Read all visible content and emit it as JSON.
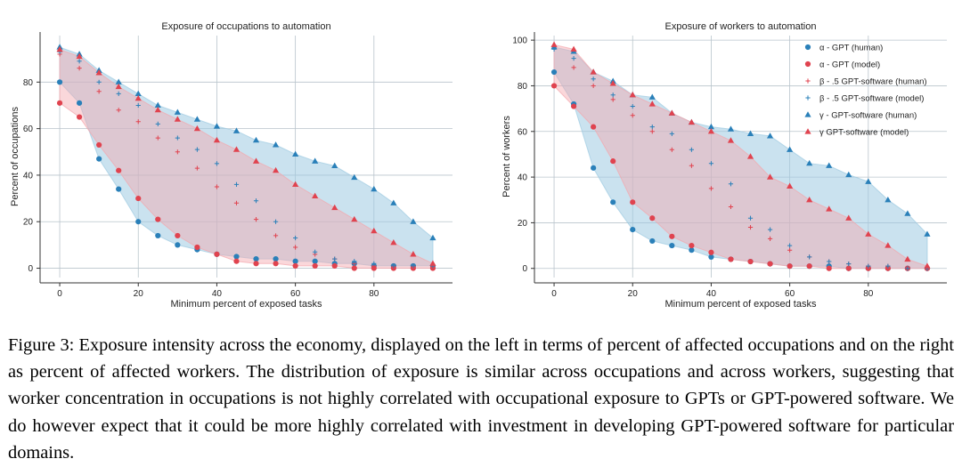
{
  "caption": "Figure 3: Exposure intensity across the economy, displayed on the left in terms of percent of affected occupations and on the right as percent of affected workers. The distribution of exposure is similar across occupations and across workers, suggesting that worker concentration in occupations is not highly correlated with occupational exposure to GPTs or GPT-powered software. We do however expect that it could be more highly correlated with investment in developing GPT-powered software for particular domains.",
  "colors": {
    "human": "#2a80b9",
    "model": "#e0434f",
    "human_fill": "#9ecae1",
    "model_fill": "#f4a6ad",
    "overlap_fill": "#9c84b0",
    "grid": "#b9c4cc"
  },
  "legend": [
    {
      "label": "α - GPT (human)",
      "series": "alpha_human",
      "marker": "dot",
      "color": "#2a80b9"
    },
    {
      "label": "α - GPT (model)",
      "series": "alpha_model",
      "marker": "dot",
      "color": "#e0434f"
    },
    {
      "label": "β - .5 GPT-software (human)",
      "series": "beta_human",
      "marker": "plus",
      "color": "#e0434f"
    },
    {
      "label": "β - .5 GPT-software (model)",
      "series": "beta_model",
      "marker": "plus",
      "color": "#2a80b9"
    },
    {
      "label": "γ - GPT-software (human)",
      "series": "gamma_human",
      "marker": "triangle",
      "color": "#2a80b9"
    },
    {
      "label": "γ GPT-software (model)",
      "series": "gamma_model",
      "marker": "triangle",
      "color": "#e0434f"
    }
  ],
  "chart_data": [
    {
      "type": "scatter",
      "title": "Exposure of occupations to automation",
      "xlabel": "Minimum percent of exposed tasks",
      "ylabel": "Percent of occupations",
      "xlim": [
        -5,
        100
      ],
      "ylim": [
        -4,
        100
      ],
      "xticks": [
        0,
        20,
        40,
        60,
        80
      ],
      "yticks": [
        0,
        20,
        40,
        60,
        80
      ],
      "grid": true,
      "legend": null,
      "x": [
        0,
        5,
        10,
        15,
        20,
        25,
        30,
        35,
        40,
        45,
        50,
        55,
        60,
        65,
        70,
        75,
        80,
        85,
        90,
        95
      ],
      "series": [
        {
          "name": "α - GPT (human)",
          "key": "alpha_human",
          "values": [
            80,
            71,
            47,
            34,
            20,
            14,
            10,
            8,
            6,
            5,
            4,
            4,
            3,
            3,
            2,
            2,
            1,
            1,
            1,
            1
          ]
        },
        {
          "name": "α - GPT (model)",
          "key": "alpha_model",
          "values": [
            71,
            65,
            53,
            42,
            30,
            21,
            14,
            9,
            6,
            3,
            2,
            2,
            1,
            1,
            1,
            0,
            0,
            0,
            0,
            0
          ]
        },
        {
          "name": "β - .5 GPT-software (human)",
          "key": "beta_human",
          "values": [
            92,
            86,
            76,
            68,
            63,
            56,
            50,
            43,
            35,
            28,
            21,
            14,
            9,
            6,
            4,
            2,
            1,
            1,
            1,
            0
          ]
        },
        {
          "name": "β - .5 GPT-software (model)",
          "key": "beta_model",
          "values": [
            93,
            89,
            80,
            75,
            70,
            62,
            56,
            51,
            45,
            36,
            29,
            20,
            13,
            7,
            4,
            3,
            2,
            1,
            1,
            1
          ]
        },
        {
          "name": "γ - GPT-software (human)",
          "key": "gamma_human",
          "values": [
            95,
            92,
            85,
            80,
            75,
            70,
            67,
            64,
            61,
            59,
            55,
            53,
            49,
            46,
            44,
            39,
            34,
            28,
            20,
            13
          ]
        },
        {
          "name": "γ GPT-software (model)",
          "key": "gamma_model",
          "values": [
            94,
            91,
            84,
            78,
            73,
            68,
            64,
            60,
            55,
            51,
            46,
            42,
            36,
            31,
            26,
            21,
            16,
            11,
            6,
            2
          ]
        }
      ]
    },
    {
      "type": "scatter",
      "title": "Exposure of workers to automation",
      "xlabel": "Minimum percent of exposed tasks",
      "ylabel": "Percent of workers",
      "xlim": [
        -5,
        100
      ],
      "ylim": [
        -4,
        102
      ],
      "xticks": [
        0,
        20,
        40,
        60,
        80
      ],
      "yticks": [
        0,
        20,
        40,
        60,
        80,
        100
      ],
      "grid": true,
      "legend": "top-right",
      "x": [
        0,
        5,
        10,
        15,
        20,
        25,
        30,
        35,
        40,
        45,
        50,
        55,
        60,
        65,
        70,
        75,
        80,
        85,
        90,
        95
      ],
      "series": [
        {
          "name": "α - GPT (human)",
          "key": "alpha_human",
          "values": [
            86,
            72,
            44,
            29,
            17,
            12,
            10,
            8,
            5,
            4,
            3,
            2,
            1,
            1,
            1,
            0,
            0,
            0,
            0,
            0
          ]
        },
        {
          "name": "α - GPT (model)",
          "key": "alpha_model",
          "values": [
            80,
            71,
            62,
            47,
            29,
            22,
            14,
            10,
            7,
            4,
            3,
            2,
            1,
            1,
            0,
            0,
            0,
            0,
            0,
            0
          ]
        },
        {
          "name": "β - .5 GPT-software (human)",
          "key": "beta_human",
          "values": [
            97,
            88,
            80,
            74,
            67,
            60,
            52,
            45,
            35,
            27,
            18,
            13,
            8,
            5,
            3,
            2,
            1,
            1,
            0,
            0
          ]
        },
        {
          "name": "β - .5 GPT-software (model)",
          "key": "beta_model",
          "values": [
            96,
            92,
            83,
            76,
            71,
            62,
            59,
            52,
            46,
            37,
            22,
            17,
            10,
            5,
            3,
            2,
            1,
            1,
            0,
            0
          ]
        },
        {
          "name": "γ - GPT-software (human)",
          "key": "gamma_human",
          "values": [
            97,
            95,
            86,
            82,
            76,
            75,
            68,
            64,
            62,
            61,
            59,
            58,
            52,
            46,
            45,
            41,
            38,
            30,
            24,
            15
          ]
        },
        {
          "name": "γ GPT-software (model)",
          "key": "gamma_model",
          "values": [
            98,
            96,
            86,
            81,
            76,
            72,
            68,
            64,
            60,
            56,
            49,
            40,
            36,
            30,
            26,
            22,
            15,
            10,
            4,
            1
          ]
        }
      ]
    }
  ]
}
